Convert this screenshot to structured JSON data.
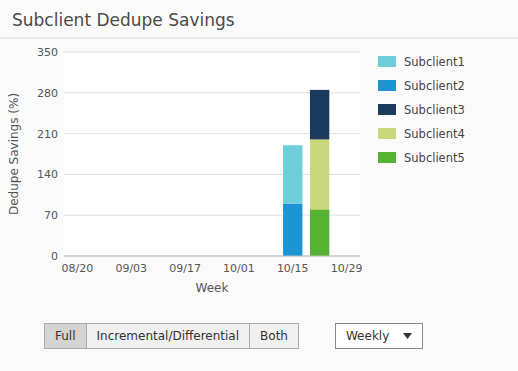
{
  "chart_data": {
    "type": "bar",
    "stacked": true,
    "title": "Subclient Dedupe Savings",
    "x_label": "Week",
    "y_label": "Dedupe Savings (%)",
    "categories": [
      "08/20",
      null,
      "09/03",
      null,
      "09/17",
      null,
      "10/01",
      null,
      "10/15",
      null,
      "10/29"
    ],
    "series": [
      {
        "name": "Subclient1",
        "color": "#6DCFDA",
        "values": [
          null,
          null,
          null,
          null,
          null,
          null,
          null,
          null,
          100,
          null,
          null
        ]
      },
      {
        "name": "Subclient2",
        "color": "#1B96D3",
        "values": [
          null,
          null,
          null,
          null,
          null,
          null,
          null,
          null,
          90,
          null,
          null
        ]
      },
      {
        "name": "Subclient3",
        "color": "#1A3B5C",
        "values": [
          null,
          null,
          null,
          null,
          null,
          null,
          null,
          null,
          null,
          85,
          null
        ]
      },
      {
        "name": "Subclient4",
        "color": "#C8D87A",
        "values": [
          null,
          null,
          null,
          null,
          null,
          null,
          null,
          null,
          null,
          120,
          null
        ]
      },
      {
        "name": "Subclient5",
        "color": "#55B233",
        "values": [
          null,
          null,
          null,
          null,
          null,
          null,
          null,
          null,
          null,
          80,
          null
        ]
      }
    ],
    "ylim": [
      0,
      350
    ],
    "yticks": [
      0,
      70,
      140,
      210,
      280,
      350
    ],
    "grid": true,
    "legend": "right"
  },
  "controls": {
    "buttons": [
      "Full",
      "Incremental/Differential",
      "Both"
    ],
    "active": "Full",
    "dropdown": "Weekly"
  }
}
